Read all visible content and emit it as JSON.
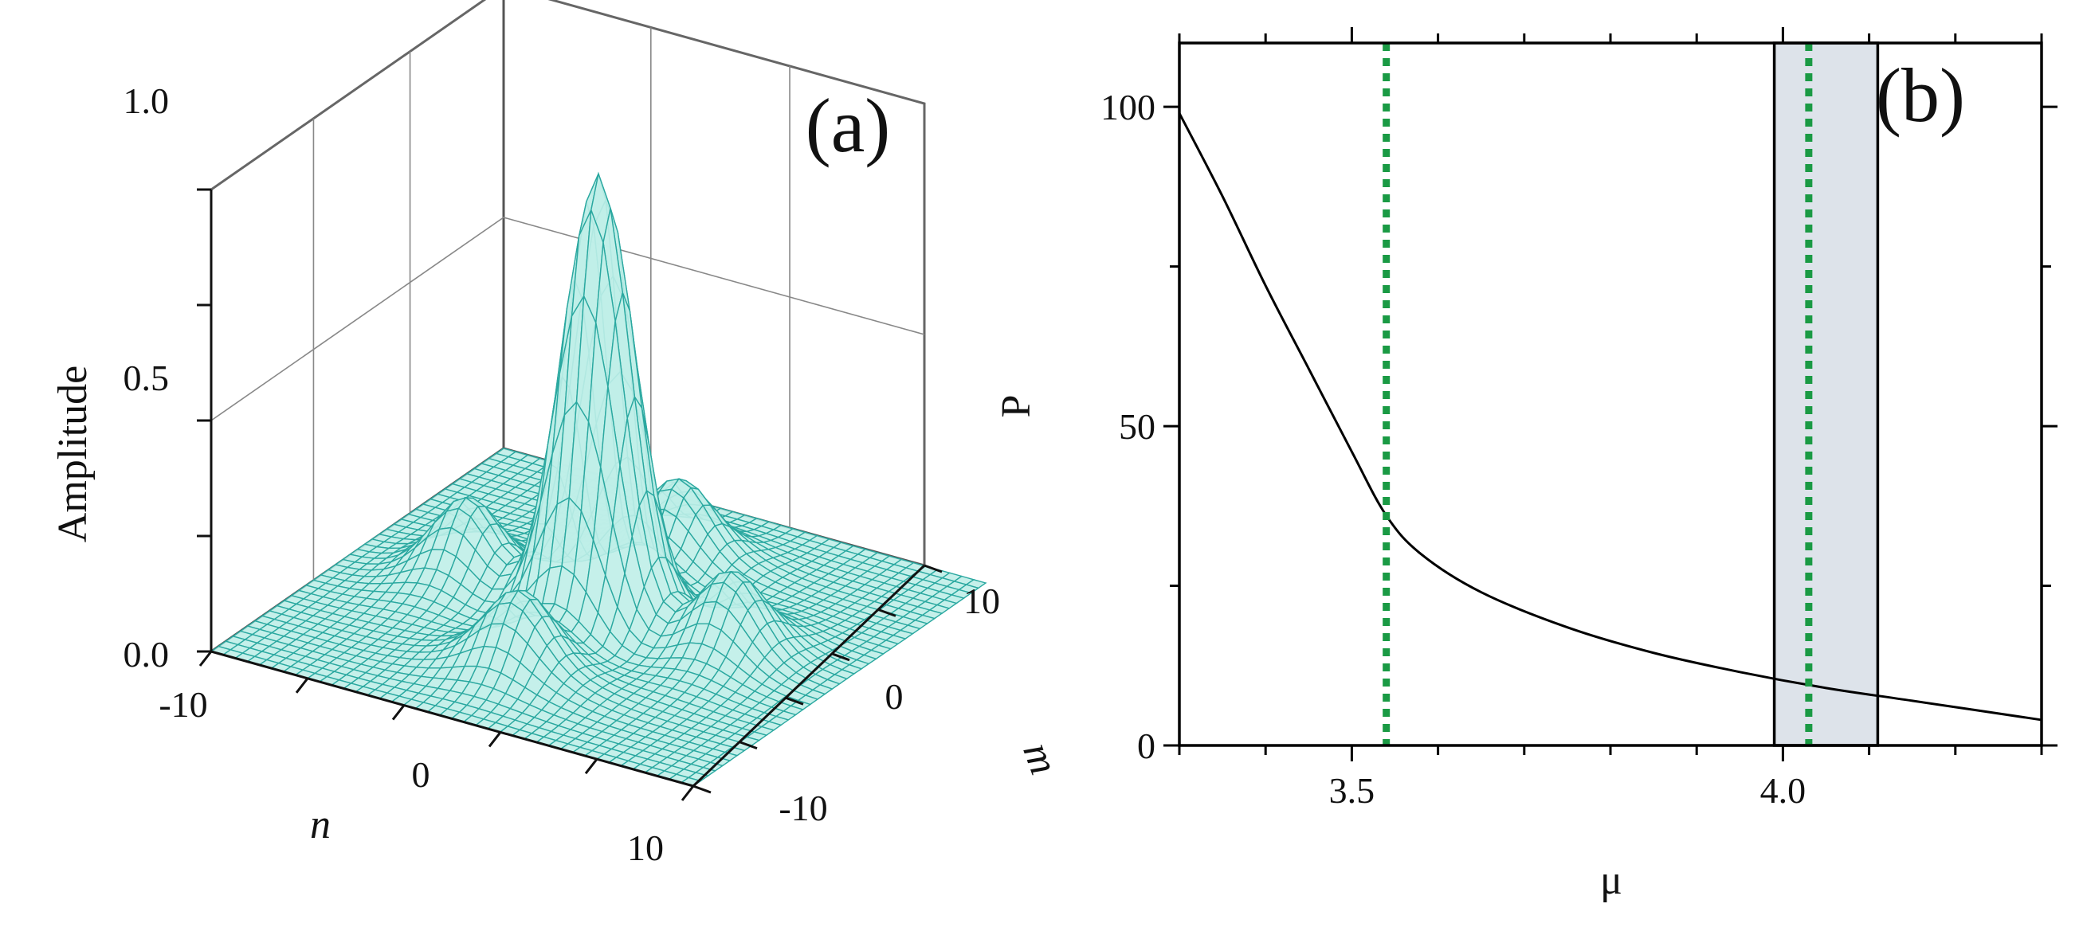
{
  "chart_data": [
    {
      "panel": "(a)",
      "type": "surface",
      "xlabel": "n",
      "ylabel": "m",
      "zlabel": "Amplitude",
      "x_ticks": [
        "-10",
        "0",
        "10"
      ],
      "y_ticks": [
        "-10",
        "0",
        "10"
      ],
      "z_ticks": [
        "0.0",
        "0.5",
        "1.0"
      ],
      "xlim": [
        -13,
        13
      ],
      "ylim": [
        -13,
        13
      ],
      "zlim": [
        0,
        1.0
      ],
      "peak": {
        "n": 0,
        "m": 0,
        "amplitude": 0.96
      },
      "side_lobes": [
        {
          "n": -7,
          "m": 0,
          "amplitude": 0.12
        },
        {
          "n": 7,
          "m": 0,
          "amplitude": 0.12
        },
        {
          "n": 0,
          "m": -7,
          "amplitude": 0.12
        },
        {
          "n": 0,
          "m": 7,
          "amplitude": 0.12
        }
      ],
      "mesh_color": "#2aa8a0",
      "fill_color": "#bfeee8"
    },
    {
      "panel": "(b)",
      "type": "line",
      "xlabel": "μ",
      "ylabel": "P",
      "xlim": [
        3.3,
        4.3
      ],
      "ylim": [
        0,
        110
      ],
      "x_ticks": [
        "3.5",
        "4.0"
      ],
      "y_ticks": [
        "0",
        "50",
        "100"
      ],
      "series": [
        {
          "color": "#000000",
          "x": [
            3.3,
            3.35,
            3.4,
            3.45,
            3.5,
            3.54,
            3.58,
            3.65,
            3.75,
            3.85,
            3.95,
            4.05,
            4.15,
            4.3
          ],
          "y": [
            99,
            86,
            72,
            59,
            46,
            36,
            30,
            24,
            18.5,
            14.5,
            11.5,
            9,
            7,
            4
          ]
        }
      ],
      "vlines": [
        {
          "x": 3.54,
          "color": "#1a9a44",
          "style": "dotted"
        },
        {
          "x": 4.03,
          "color": "#1a9a44",
          "style": "dotted"
        }
      ],
      "shaded_region": {
        "x0": 3.99,
        "x1": 4.11,
        "color": "#dde3ea"
      }
    }
  ]
}
